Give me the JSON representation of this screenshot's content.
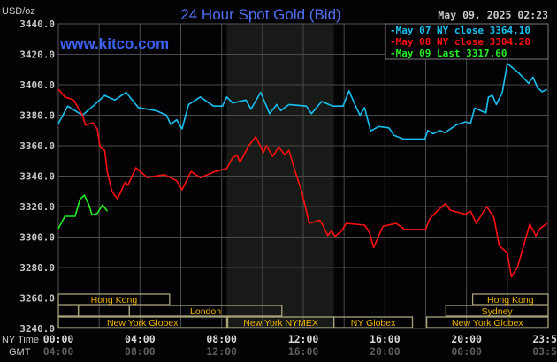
{
  "header": {
    "title": "24 Hour Spot Gold (Bid)",
    "unit": "USD/oz",
    "timestamp": "May 09, 2025 02:23",
    "watermark": "www.kitco.com"
  },
  "colors": {
    "background": "#030305",
    "grid": "#4a4a4a",
    "title": "#4f6ff2",
    "watermark": "#3d62f5",
    "shade": "#171a17",
    "session_border": "#a8a27a",
    "session_text": "#f0b400"
  },
  "chart_data": {
    "type": "line",
    "title": "24 Hour Spot Gold (Bid)",
    "ylabel": "USD/oz",
    "ylim": [
      3240,
      3440
    ],
    "xlim": [
      0,
      24
    ],
    "grid": true,
    "legend_placement": "top-right",
    "y_ticks": [
      "3440.0",
      "3420.0",
      "3400.0",
      "3380.0",
      "3360.0",
      "3340.0",
      "3320.0",
      "3300.0",
      "3280.0",
      "3260.0",
      "3240.0"
    ],
    "x_axis_labels": {
      "ny_label": "NY Time",
      "gmt_label": "GMT"
    },
    "x_ticks": [
      {
        "h": 0,
        "ny": "00:00",
        "gmt": "04:00"
      },
      {
        "h": 4,
        "ny": "04:00",
        "gmt": "08:00"
      },
      {
        "h": 8,
        "ny": "08:00",
        "gmt": "12:00"
      },
      {
        "h": 12,
        "ny": "12:00",
        "gmt": "16:00"
      },
      {
        "h": 16,
        "ny": "16:00",
        "gmt": "20:00"
      },
      {
        "h": 20,
        "ny": "20:00",
        "gmt": "00:00"
      },
      {
        "h": 23.98,
        "ny": "23:59",
        "gmt": "03:59"
      }
    ],
    "shaded_hours": [
      8.25,
      13.5
    ],
    "series": [
      {
        "name": "May 07 NY close 3364.10",
        "color": "#18c0f0",
        "points": [
          [
            0,
            3374.5
          ],
          [
            0.46,
            3386
          ],
          [
            1.18,
            3380
          ],
          [
            1.7,
            3386
          ],
          [
            2.27,
            3393
          ],
          [
            2.77,
            3390
          ],
          [
            3.32,
            3395
          ],
          [
            3.92,
            3385
          ],
          [
            4.79,
            3383
          ],
          [
            5.3,
            3380
          ],
          [
            5.5,
            3374
          ],
          [
            5.8,
            3377
          ],
          [
            6.06,
            3371
          ],
          [
            6.38,
            3387
          ],
          [
            6.96,
            3392
          ],
          [
            7.6,
            3386
          ],
          [
            8.04,
            3386
          ],
          [
            8.25,
            3392
          ],
          [
            8.54,
            3388
          ],
          [
            9.19,
            3390
          ],
          [
            9.44,
            3384
          ],
          [
            9.91,
            3395
          ],
          [
            10.35,
            3381
          ],
          [
            10.7,
            3387
          ],
          [
            10.9,
            3383
          ],
          [
            11.3,
            3387
          ],
          [
            12.15,
            3386
          ],
          [
            12.4,
            3381
          ],
          [
            12.9,
            3389
          ],
          [
            13.45,
            3386
          ],
          [
            13.95,
            3386
          ],
          [
            14.24,
            3396
          ],
          [
            14.6,
            3385
          ],
          [
            14.78,
            3380
          ],
          [
            15.0,
            3385
          ],
          [
            15.3,
            3369.7
          ],
          [
            15.7,
            3372.6
          ],
          [
            16.2,
            3371.7
          ],
          [
            16.45,
            3366.8
          ],
          [
            16.9,
            3364.4
          ],
          [
            17.96,
            3364.4
          ],
          [
            18.1,
            3370
          ],
          [
            18.36,
            3367.8
          ],
          [
            18.7,
            3370
          ],
          [
            18.94,
            3368.5
          ],
          [
            19.5,
            3373.6
          ],
          [
            19.94,
            3375.6
          ],
          [
            20.2,
            3374.7
          ],
          [
            20.4,
            3384.7
          ],
          [
            20.95,
            3381.5
          ],
          [
            21.07,
            3391.9
          ],
          [
            21.27,
            3393
          ],
          [
            21.46,
            3387
          ],
          [
            21.75,
            3394.9
          ],
          [
            22.0,
            3414
          ],
          [
            22.54,
            3408
          ],
          [
            23.04,
            3401
          ],
          [
            23.26,
            3405
          ],
          [
            23.48,
            3398
          ],
          [
            23.7,
            3395.4
          ],
          [
            23.95,
            3397
          ]
        ]
      },
      {
        "name": "May 08 NY close 3304.20",
        "color": "#ff1010",
        "points": [
          [
            0,
            3397
          ],
          [
            0.32,
            3392
          ],
          [
            0.75,
            3390
          ],
          [
            1.18,
            3380
          ],
          [
            1.33,
            3373.5
          ],
          [
            1.69,
            3375
          ],
          [
            1.9,
            3371
          ],
          [
            2.05,
            3359
          ],
          [
            2.27,
            3357
          ],
          [
            2.4,
            3342.6
          ],
          [
            2.63,
            3330
          ],
          [
            2.9,
            3325
          ],
          [
            3.27,
            3336
          ],
          [
            3.4,
            3334
          ],
          [
            3.8,
            3345.5
          ],
          [
            4.36,
            3339
          ],
          [
            5.2,
            3341
          ],
          [
            5.8,
            3337
          ],
          [
            6.06,
            3331
          ],
          [
            6.5,
            3343
          ],
          [
            6.96,
            3339
          ],
          [
            7.68,
            3343
          ],
          [
            8.25,
            3345
          ],
          [
            8.54,
            3352
          ],
          [
            8.76,
            3354
          ],
          [
            8.9,
            3349
          ],
          [
            9.33,
            3360
          ],
          [
            9.67,
            3366
          ],
          [
            10.05,
            3355.5
          ],
          [
            10.2,
            3360
          ],
          [
            10.5,
            3353
          ],
          [
            10.8,
            3359
          ],
          [
            11.1,
            3354
          ],
          [
            11.3,
            3357
          ],
          [
            11.6,
            3343
          ],
          [
            11.9,
            3331
          ],
          [
            12.3,
            3309
          ],
          [
            12.8,
            3311
          ],
          [
            12.95,
            3308
          ],
          [
            13.2,
            3301
          ],
          [
            13.38,
            3304
          ],
          [
            13.56,
            3300.5
          ],
          [
            13.88,
            3304
          ],
          [
            14.1,
            3309
          ],
          [
            15.0,
            3307.8
          ],
          [
            15.25,
            3303
          ],
          [
            15.45,
            3293
          ],
          [
            15.9,
            3307
          ],
          [
            16.55,
            3309
          ],
          [
            16.98,
            3305
          ],
          [
            17.99,
            3305
          ],
          [
            18.2,
            3312
          ],
          [
            18.6,
            3317.6
          ],
          [
            18.97,
            3322
          ],
          [
            19.2,
            3317.6
          ],
          [
            19.95,
            3315
          ],
          [
            20.2,
            3317
          ],
          [
            20.48,
            3309
          ],
          [
            20.99,
            3320
          ],
          [
            21.35,
            3312.7
          ],
          [
            21.6,
            3294.4
          ],
          [
            22.0,
            3289.6
          ],
          [
            22.2,
            3274
          ],
          [
            22.5,
            3280.4
          ],
          [
            23.1,
            3308.5
          ],
          [
            23.4,
            3300.8
          ],
          [
            23.6,
            3305.6
          ],
          [
            23.95,
            3309
          ]
        ]
      },
      {
        "name": "May 09 Last 3317.60",
        "color": "#22ee22",
        "points": [
          [
            0,
            3305.6
          ],
          [
            0.32,
            3313.6
          ],
          [
            0.82,
            3313.6
          ],
          [
            1.07,
            3325
          ],
          [
            1.28,
            3327.5
          ],
          [
            1.5,
            3321
          ],
          [
            1.65,
            3314.5
          ],
          [
            1.9,
            3315.5
          ],
          [
            2.16,
            3321
          ],
          [
            2.4,
            3317
          ]
        ]
      }
    ],
    "sessions": [
      {
        "row": 0,
        "label": "Hong Kong",
        "start": 0,
        "end": 5.45
      },
      {
        "row": 0,
        "label": "Hong Kong",
        "start": 20.3,
        "end": 24
      },
      {
        "row": 1,
        "label": "",
        "start": 0,
        "end": 0.98
      },
      {
        "row": 1,
        "label": "",
        "start": 0.98,
        "end": 3.48
      },
      {
        "row": 1,
        "label": "London",
        "start": 3.48,
        "end": 10.95
      },
      {
        "row": 1,
        "label": "Sydney",
        "start": 18.99,
        "end": 24
      },
      {
        "row": 2,
        "label": "New York Globex",
        "start": 0,
        "end": 8.25
      },
      {
        "row": 2,
        "label": "New York NYMEX",
        "start": 8.3,
        "end": 13.5
      },
      {
        "row": 2,
        "label": "NY Globex",
        "start": 13.5,
        "end": 17.35
      },
      {
        "row": 2,
        "label": "New York Globex",
        "start": 18.05,
        "end": 24
      }
    ]
  }
}
